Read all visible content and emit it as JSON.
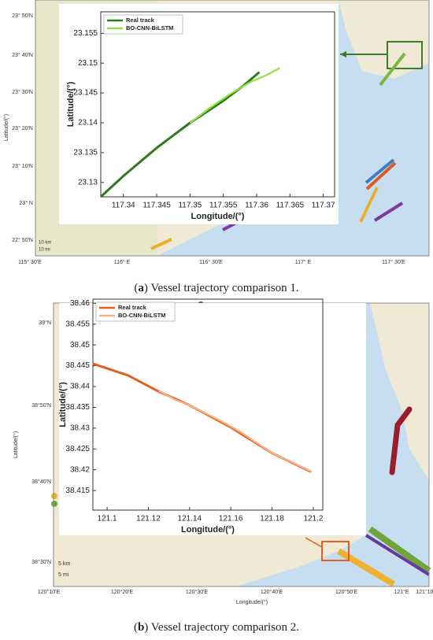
{
  "maps": [
    {
      "caption": {
        "label": "a",
        "text": "Vessel trajectory comparison 1."
      },
      "ylabel": "Latitude/(°)",
      "lat_labels": [
        "23° 50'N",
        "23° 40'N",
        "23° 30'N",
        "23° 20'N",
        "23° 10'N",
        "23° N",
        "22° 50'N"
      ],
      "lon_labels": [
        "115° 30'E",
        "116° E",
        "116° 30'E",
        "117° E",
        "117° 30'E"
      ],
      "scale": [
        "10 km",
        "10 mi"
      ]
    },
    {
      "caption": {
        "label": "b",
        "text": "Vessel trajectory comparison 2."
      },
      "ylabel": "Latitude/(°)",
      "xlabel": "Longitude/(°)",
      "lat_labels": [
        "39°N",
        "38°50'N",
        "38°40'N",
        "38°30'N"
      ],
      "lon_labels": [
        "120°10'E",
        "120°20'E",
        "120°30'E",
        "120°40'E",
        "120°50'E",
        "121°E",
        "121°10'"
      ],
      "scale": [
        "5 km",
        "5 mi"
      ]
    }
  ],
  "chart_data": [
    {
      "type": "line",
      "xlabel": "Longitude/(°)",
      "ylabel": "Latitude/(°)",
      "xlim": [
        117.3366,
        117.3717
      ],
      "xticks": [
        117.34,
        117.345,
        117.35,
        117.355,
        117.36,
        117.365,
        117.37
      ],
      "ylim": [
        23.1276,
        23.1586
      ],
      "yticks": [
        23.13,
        23.135,
        23.14,
        23.145,
        23.15,
        23.155
      ],
      "legend": "upper left",
      "series": [
        {
          "name": "Real track",
          "color": "#2f7a1f",
          "x": [
            117.3366,
            117.34,
            117.345,
            117.35,
            117.355,
            117.358,
            117.3604
          ],
          "values": [
            23.1276,
            23.1311,
            23.1358,
            23.14,
            23.1437,
            23.1462,
            23.1485
          ]
        },
        {
          "name": "BO-CNN-BiLSTM",
          "color": "#8fe040",
          "x": [
            117.35,
            117.353,
            117.356,
            117.359,
            117.3615,
            117.3635
          ],
          "values": [
            23.14,
            23.1425,
            23.1448,
            23.1468,
            23.148,
            23.1492
          ]
        }
      ]
    },
    {
      "type": "line",
      "xlabel": "Longitude/(°)",
      "ylabel": "Latitude/(°)",
      "xlim": [
        121.0931,
        121.2046
      ],
      "xticks": [
        121.1,
        121.12,
        121.14,
        121.16,
        121.18,
        121.2
      ],
      "ylim": [
        38.4103,
        38.461
      ],
      "yticks": [
        38.415,
        38.42,
        38.425,
        38.43,
        38.435,
        38.44,
        38.445,
        38.45,
        38.455,
        38.46
      ],
      "legend": "upper left",
      "series": [
        {
          "name": "Real track",
          "color": "#e2601e",
          "x": [
            121.093,
            121.11,
            121.125,
            121.14,
            121.16,
            121.18,
            121.199
          ],
          "values": [
            38.4455,
            38.4427,
            38.4388,
            38.4355,
            38.4302,
            38.424,
            38.4195
          ]
        },
        {
          "name": "BO-CNN-BiLSTM",
          "color": "#f3b387",
          "x": [
            121.125,
            121.133,
            121.14,
            121.155,
            121.165,
            121.18,
            121.199
          ],
          "values": [
            38.439,
            38.4368,
            38.4355,
            38.4318,
            38.429,
            38.424,
            38.4196
          ]
        }
      ]
    }
  ]
}
